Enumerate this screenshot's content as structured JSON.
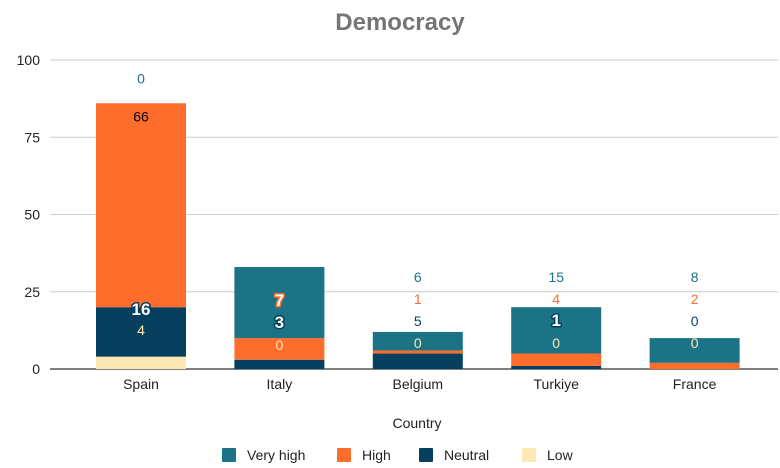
{
  "chart_data": {
    "type": "bar",
    "stacked": true,
    "title": "Democracy",
    "xlabel": "Country",
    "ylabel": "",
    "ylim": [
      0,
      100
    ],
    "yticks": [
      0,
      25,
      50,
      75,
      100
    ],
    "grid": true,
    "legend_position": "bottom",
    "categories": [
      "Spain",
      "Italy",
      "Belgium",
      "Turkiye",
      "France"
    ],
    "series": [
      {
        "name": "Low",
        "color": "#fce8b2",
        "values": [
          4,
          0,
          0,
          0,
          0
        ]
      },
      {
        "name": "Neutral",
        "color": "#073f5e",
        "values": [
          16,
          3,
          5,
          1,
          0
        ]
      },
      {
        "name": "High",
        "color": "#ff6d2d",
        "values": [
          66,
          7,
          1,
          4,
          2
        ]
      },
      {
        "name": "Very high",
        "color": "#1b7385",
        "values": [
          0,
          23,
          6,
          15,
          8
        ]
      }
    ],
    "legend_order": [
      "Very high",
      "High",
      "Neutral",
      "Low"
    ]
  }
}
